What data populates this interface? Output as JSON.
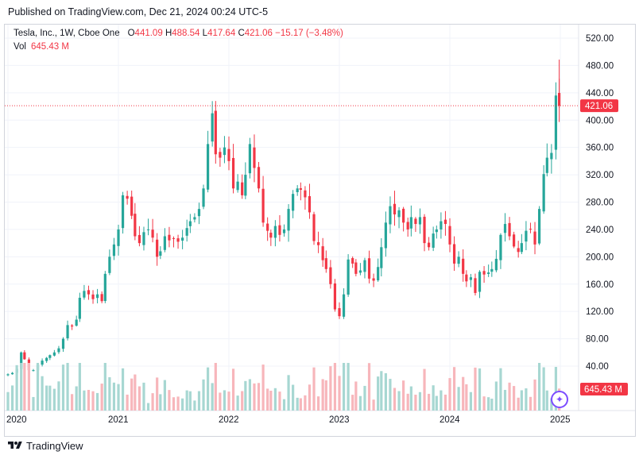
{
  "header": {
    "published": "Published on TradingView.com, Dec 21, 2024 00:24 UTC-5"
  },
  "legend": {
    "symbol": "Tesla, Inc., 1W, Cboe One",
    "o_label": "O",
    "o_value": "441.09",
    "h_label": "H",
    "h_value": "488.54",
    "l_label": "L",
    "l_value": "417.64",
    "c_label": "C",
    "c_value": "421.06",
    "change": "−15.17 (−3.48%)",
    "vol_label": "Vol",
    "vol_value": "645.43 M"
  },
  "footer": {
    "brand": "TradingView"
  },
  "colors": {
    "up": "#26a69a",
    "down": "#f23645",
    "up_vol": "#a7d7d2",
    "down_vol": "#f7b6bb",
    "grid": "#f0f3fa",
    "accent": "#7c4dff"
  },
  "chart_data": {
    "type": "candlestick",
    "title": "Tesla, Inc., 1W, Cboe One",
    "interval": "1W",
    "y_ticks": [
      "520.00",
      "480.00",
      "440.00",
      "400.00",
      "360.00",
      "320.00",
      "280.00",
      "240.00",
      "200.00",
      "160.00",
      "120.00",
      "80.00",
      "40.00"
    ],
    "y_tick_values": [
      520,
      480,
      440,
      400,
      360,
      320,
      280,
      240,
      200,
      160,
      120,
      80,
      40
    ],
    "x_ticks": [
      "2020",
      "2021",
      "2022",
      "2023",
      "2024",
      "2025"
    ],
    "ylim": [
      0,
      540
    ],
    "last_price_label": "421.06",
    "last_price": 421.06,
    "volume_label": "645.43 M",
    "volume_axis_labels": [],
    "series": [
      {
        "name": "close",
        "points": [
          [
            2020.0,
            28
          ],
          [
            2020.04,
            30
          ],
          [
            2020.08,
            36
          ],
          [
            2020.12,
            60
          ],
          [
            2020.15,
            50
          ],
          [
            2020.19,
            34
          ],
          [
            2020.23,
            34
          ],
          [
            2020.27,
            42
          ],
          [
            2020.31,
            48
          ],
          [
            2020.35,
            52
          ],
          [
            2020.38,
            56
          ],
          [
            2020.42,
            60
          ],
          [
            2020.46,
            66
          ],
          [
            2020.5,
            80
          ],
          [
            2020.54,
            100
          ],
          [
            2020.58,
            98
          ],
          [
            2020.62,
            108
          ],
          [
            2020.65,
            140
          ],
          [
            2020.69,
            150
          ],
          [
            2020.73,
            145
          ],
          [
            2020.77,
            138
          ],
          [
            2020.81,
            145
          ],
          [
            2020.85,
            135
          ],
          [
            2020.88,
            175
          ],
          [
            2020.92,
            200
          ],
          [
            2020.96,
            218
          ],
          [
            2021.0,
            240
          ],
          [
            2021.04,
            290
          ],
          [
            2021.08,
            285
          ],
          [
            2021.12,
            260
          ],
          [
            2021.15,
            230
          ],
          [
            2021.19,
            220
          ],
          [
            2021.23,
            236
          ],
          [
            2021.27,
            240
          ],
          [
            2021.31,
            228
          ],
          [
            2021.35,
            200
          ],
          [
            2021.38,
            208
          ],
          [
            2021.42,
            230
          ],
          [
            2021.46,
            224
          ],
          [
            2021.5,
            226
          ],
          [
            2021.54,
            222
          ],
          [
            2021.58,
            228
          ],
          [
            2021.62,
            242
          ],
          [
            2021.65,
            252
          ],
          [
            2021.69,
            258
          ],
          [
            2021.73,
            270
          ],
          [
            2021.77,
            300
          ],
          [
            2021.81,
            365
          ],
          [
            2021.85,
            410
          ],
          [
            2021.88,
            350
          ],
          [
            2021.92,
            345
          ],
          [
            2021.96,
            360
          ],
          [
            2022.0,
            340
          ],
          [
            2022.04,
            300
          ],
          [
            2022.08,
            310
          ],
          [
            2022.12,
            290
          ],
          [
            2022.15,
            320
          ],
          [
            2022.19,
            365
          ],
          [
            2022.23,
            330
          ],
          [
            2022.27,
            300
          ],
          [
            2022.31,
            250
          ],
          [
            2022.35,
            238
          ],
          [
            2022.38,
            228
          ],
          [
            2022.42,
            245
          ],
          [
            2022.46,
            232
          ],
          [
            2022.5,
            240
          ],
          [
            2022.54,
            270
          ],
          [
            2022.58,
            292
          ],
          [
            2022.62,
            300
          ],
          [
            2022.65,
            298
          ],
          [
            2022.69,
            287
          ],
          [
            2022.73,
            265
          ],
          [
            2022.77,
            223
          ],
          [
            2022.81,
            217
          ],
          [
            2022.85,
            195
          ],
          [
            2022.88,
            182
          ],
          [
            2022.92,
            160
          ],
          [
            2022.96,
            123
          ],
          [
            2023.0,
            113
          ],
          [
            2023.04,
            145
          ],
          [
            2023.08,
            196
          ],
          [
            2023.12,
            190
          ],
          [
            2023.15,
            175
          ],
          [
            2023.19,
            180
          ],
          [
            2023.23,
            195
          ],
          [
            2023.27,
            168
          ],
          [
            2023.31,
            165
          ],
          [
            2023.35,
            185
          ],
          [
            2023.38,
            214
          ],
          [
            2023.42,
            250
          ],
          [
            2023.46,
            274
          ],
          [
            2023.5,
            262
          ],
          [
            2023.54,
            268
          ],
          [
            2023.58,
            250
          ],
          [
            2023.62,
            240
          ],
          [
            2023.65,
            258
          ],
          [
            2023.69,
            248
          ],
          [
            2023.73,
            258
          ],
          [
            2023.77,
            220
          ],
          [
            2023.81,
            214
          ],
          [
            2023.85,
            234
          ],
          [
            2023.88,
            240
          ],
          [
            2023.92,
            252
          ],
          [
            2023.96,
            248
          ],
          [
            2024.0,
            218
          ],
          [
            2024.04,
            190
          ],
          [
            2024.08,
            200
          ],
          [
            2024.12,
            175
          ],
          [
            2024.15,
            164
          ],
          [
            2024.19,
            170
          ],
          [
            2024.23,
            147
          ],
          [
            2024.27,
            178
          ],
          [
            2024.31,
            174
          ],
          [
            2024.35,
            177
          ],
          [
            2024.38,
            182
          ],
          [
            2024.42,
            197
          ],
          [
            2024.46,
            232
          ],
          [
            2024.5,
            248
          ],
          [
            2024.54,
            230
          ],
          [
            2024.58,
            215
          ],
          [
            2024.62,
            207
          ],
          [
            2024.65,
            220
          ],
          [
            2024.69,
            238
          ],
          [
            2024.73,
            240
          ],
          [
            2024.77,
            218
          ],
          [
            2024.81,
            270
          ],
          [
            2024.85,
            321
          ],
          [
            2024.88,
            345
          ],
          [
            2024.92,
            352
          ],
          [
            2024.96,
            436
          ],
          [
            2024.99,
            421.06
          ]
        ]
      },
      {
        "name": "volume_relative",
        "points": []
      }
    ]
  }
}
